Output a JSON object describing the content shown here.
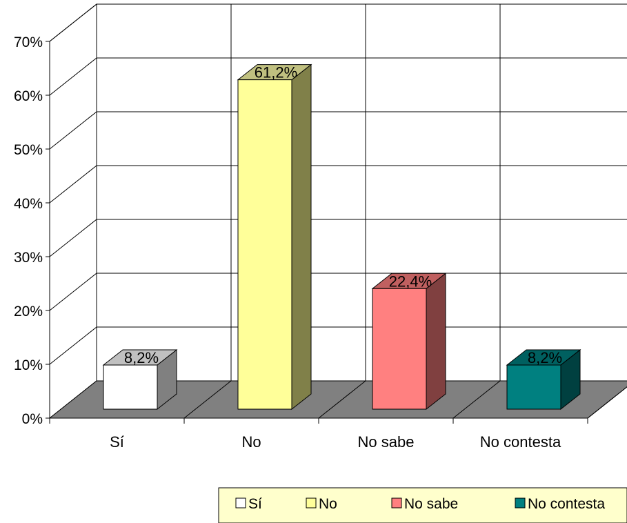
{
  "chart_data": {
    "type": "bar",
    "categories": [
      "Sí",
      "No",
      "No sabe",
      "No contesta"
    ],
    "values": [
      8.2,
      61.2,
      22.4,
      8.2
    ],
    "data_labels": [
      "8,2%",
      "61,2%",
      "22,4%",
      "8,2%"
    ],
    "yticks": [
      "0%",
      "10%",
      "20%",
      "30%",
      "40%",
      "50%",
      "60%",
      "70%"
    ],
    "ylim": [
      0,
      70
    ],
    "title": "",
    "xlabel": "",
    "ylabel": "",
    "grid": true,
    "three_d": true,
    "legend_position": "bottom-right",
    "legend": [
      "Sí",
      "No",
      "No sabe",
      "No contesta"
    ],
    "colors": {
      "fronts": [
        "#FFFFFF",
        "#FFFF99",
        "#FF8080",
        "#008080"
      ],
      "sides": [
        "#808080",
        "#808049",
        "#804040",
        "#004040"
      ],
      "tops": [
        "#C0C0C0",
        "#C0C080",
        "#C06060",
        "#006060"
      ],
      "floor": "#808080",
      "legend_bg": "#FFFFCC"
    }
  }
}
